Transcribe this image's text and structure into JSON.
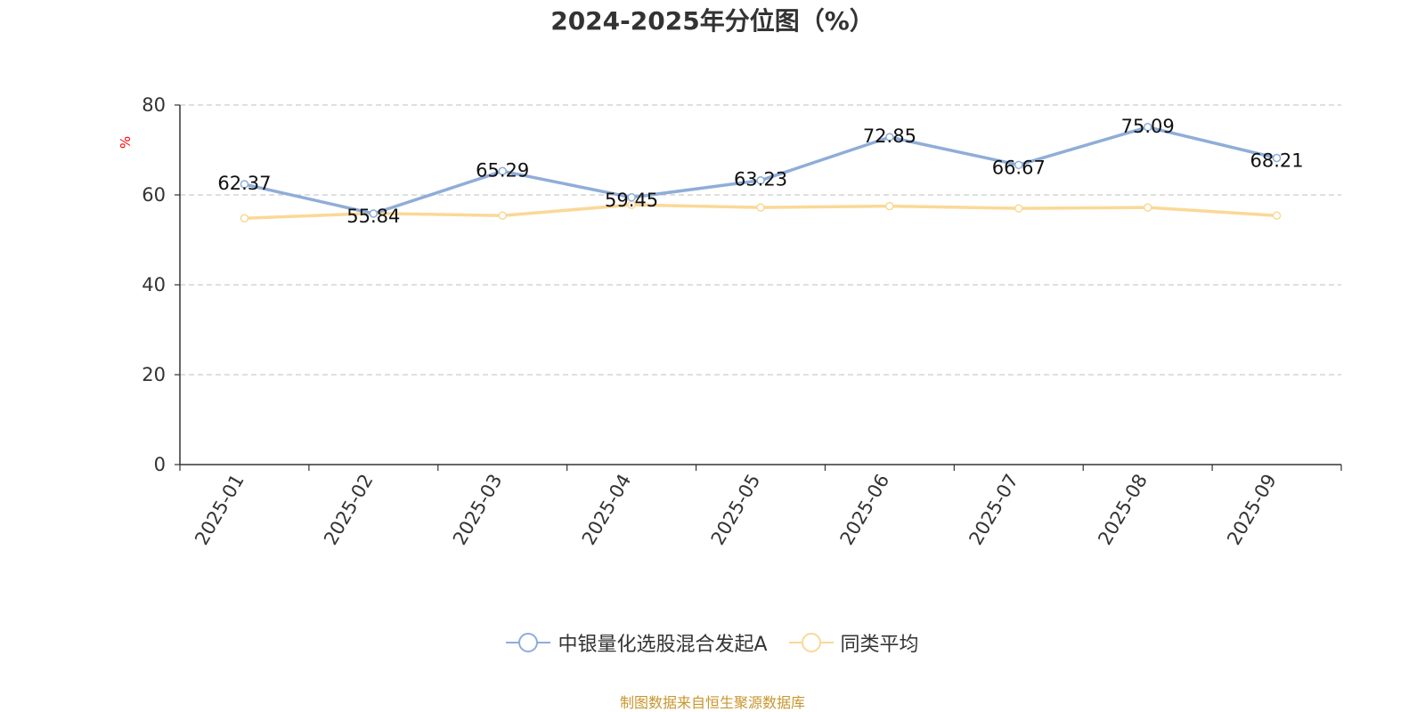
{
  "title": "2024-2025年分位图（%）",
  "source_note": "制图数据来自恒生聚源数据库",
  "colors": {
    "fund": "#8fadd8",
    "average": "#fbd896",
    "grid": "#cccccc",
    "axis": "#333333",
    "unit": "#ff0000",
    "title": "#333333",
    "source": "#c8962e"
  },
  "chart_data": {
    "type": "line",
    "title": "2024-2025年分位图（%）",
    "ylabel": "%",
    "xlabel": "",
    "ylim": [
      0,
      80
    ],
    "yticks": [
      "0",
      "20",
      "40",
      "60",
      "80"
    ],
    "categories": [
      "2025-01",
      "2025-02",
      "2025-03",
      "2025-04",
      "2025-05",
      "2025-06",
      "2025-07",
      "2025-08",
      "2025-09"
    ],
    "grid": true,
    "legend_position": "bottom-center",
    "series": [
      {
        "name": "中银量化选股混合发起A",
        "values": [
          62.37,
          55.84,
          65.29,
          59.45,
          63.23,
          72.85,
          66.67,
          75.09,
          68.21
        ],
        "labels": [
          "62.37",
          "55.84",
          "65.29",
          "59.45",
          "63.23",
          "72.85",
          "66.67",
          "75.09",
          "68.21"
        ],
        "color": "#8fadd8"
      },
      {
        "name": "同类平均",
        "values": [
          54.8,
          55.9,
          55.4,
          57.8,
          57.2,
          57.5,
          57.0,
          57.2,
          55.4
        ],
        "color": "#fbd896"
      }
    ]
  }
}
